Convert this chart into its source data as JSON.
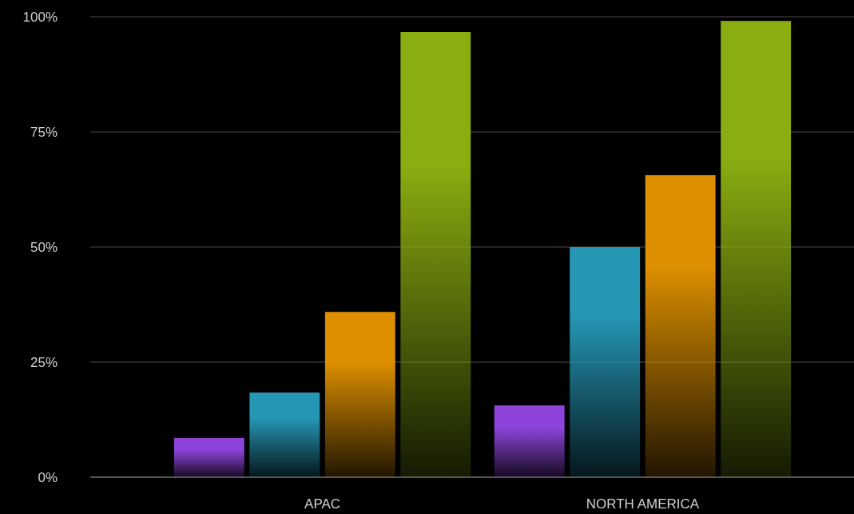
{
  "chart_data": {
    "type": "bar",
    "categories": [
      "APAC",
      "NORTH AMERICA"
    ],
    "series": [
      {
        "color": "#8e44db",
        "values": [
          8.5,
          15.6
        ]
      },
      {
        "color": "#2596b4",
        "values": [
          18.4,
          50
        ]
      },
      {
        "color": "#dd8f00",
        "values": [
          35.9,
          65.6
        ]
      },
      {
        "color": "#8aad11",
        "values": [
          96.7,
          99.1
        ]
      }
    ],
    "ylim": [
      0,
      100
    ],
    "yticks": [
      {
        "value": 0,
        "label": "0%"
      },
      {
        "value": 25,
        "label": "25%"
      },
      {
        "value": 50,
        "label": "50%"
      },
      {
        "value": 75,
        "label": "75%"
      },
      {
        "value": 100,
        "label": "100%"
      }
    ],
    "grid": "y"
  }
}
